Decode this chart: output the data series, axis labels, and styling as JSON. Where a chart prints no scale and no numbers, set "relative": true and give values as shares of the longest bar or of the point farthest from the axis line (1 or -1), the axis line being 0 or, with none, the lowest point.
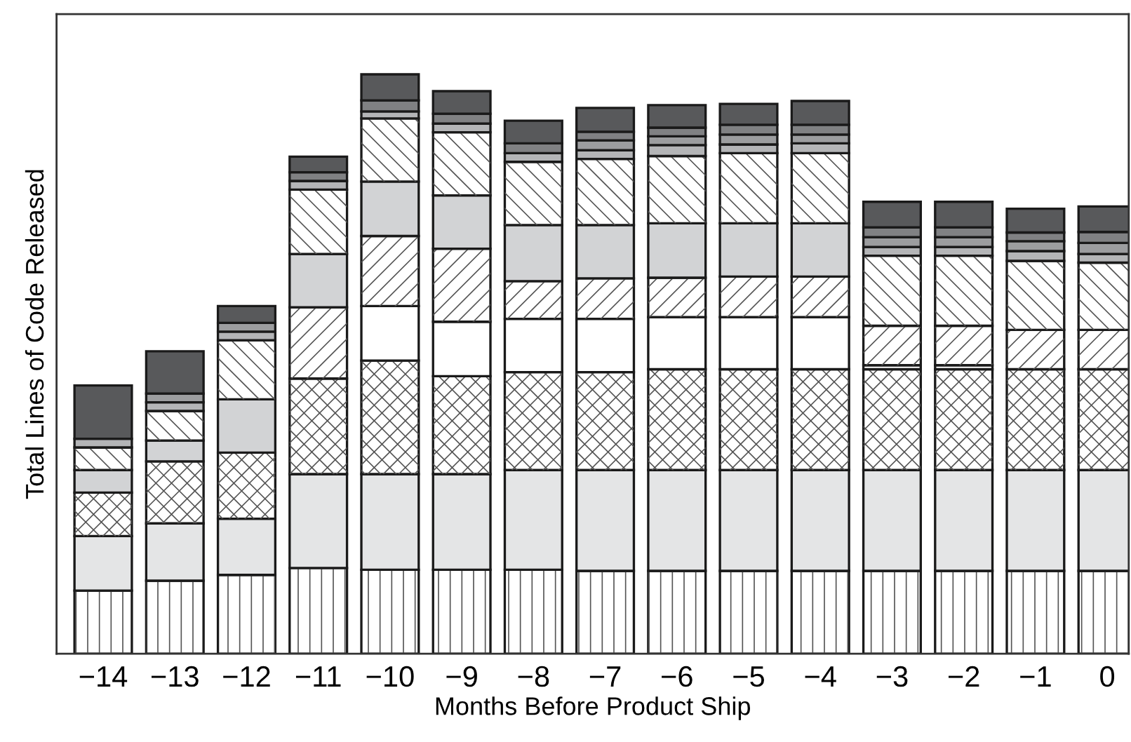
{
  "chart_data": {
    "type": "bar",
    "stacked": true,
    "relative": true,
    "xlabel": "Months Before Product Ship",
    "ylabel": "Total Lines of Code Released",
    "tick_labels": "x",
    "grid": false,
    "legend": false,
    "categories": [
      "−14",
      "−13",
      "−12",
      "−11",
      "−10",
      "−9",
      "−8",
      "−7",
      "−6",
      "−5",
      "−4",
      "−3",
      "−2",
      "−1",
      "0"
    ],
    "series": [
      {
        "color": "#ffffff",
        "values": [
          0.109,
          0.126,
          0.136,
          0.148,
          0.145,
          0.145,
          0.145,
          0.143,
          0.143,
          0.143,
          0.143,
          0.143,
          0.143,
          0.143,
          0.143
        ]
      },
      {
        "color": "#e4e5e6",
        "values": [
          0.094,
          0.099,
          0.097,
          0.162,
          0.165,
          0.165,
          0.172,
          0.174,
          0.174,
          0.174,
          0.174,
          0.174,
          0.174,
          0.174,
          0.174
        ]
      },
      {
        "color": "#ffffff",
        "values": [
          0.075,
          0.107,
          0.114,
          0.165,
          0.196,
          0.169,
          0.169,
          0.169,
          0.174,
          0.174,
          0.174,
          0.174,
          0.174,
          0.174,
          0.174
        ]
      },
      {
        "color": "#ffffff",
        "values": [
          null,
          null,
          null,
          null,
          0.094,
          0.094,
          0.092,
          0.092,
          0.09,
          0.09,
          0.09,
          0.007,
          0.007,
          null,
          null
        ]
      },
      {
        "color": "#ffffff",
        "values": [
          null,
          null,
          null,
          0.123,
          0.121,
          0.126,
          0.065,
          0.07,
          0.068,
          0.07,
          0.07,
          0.068,
          0.068,
          0.068,
          0.068
        ]
      },
      {
        "color": "#d2d3d5",
        "values": [
          0.039,
          0.036,
          0.092,
          0.092,
          0.094,
          0.092,
          0.097,
          0.092,
          0.094,
          0.092,
          0.092,
          null,
          null,
          null,
          null
        ]
      },
      {
        "color": "#ffffff",
        "values": [
          0.039,
          0.051,
          0.102,
          0.111,
          0.109,
          0.109,
          0.109,
          0.114,
          0.116,
          0.121,
          0.121,
          0.121,
          0.121,
          0.119,
          0.116
        ]
      },
      {
        "color": "#b4b5b7",
        "values": [
          0.015,
          0.015,
          0.015,
          0.015,
          0.012,
          0.015,
          0.015,
          0.015,
          0.019,
          0.015,
          0.017,
          0.015,
          0.015,
          0.017,
          0.015
        ]
      },
      {
        "color": "#9c9d9f",
        "values": [
          null,
          0.015,
          0.015,
          null,
          null,
          null,
          null,
          0.017,
          0.015,
          0.017,
          0.015,
          0.017,
          0.017,
          0.017,
          0.019
        ]
      },
      {
        "color": "#808183",
        "values": [
          null,
          null,
          null,
          0.015,
          0.019,
          0.017,
          0.017,
          0.015,
          0.015,
          0.017,
          0.017,
          0.017,
          0.017,
          0.015,
          0.019
        ]
      },
      {
        "color": "#58595b",
        "values": [
          0.092,
          0.073,
          0.029,
          0.027,
          0.045,
          0.039,
          0.039,
          0.041,
          0.039,
          0.036,
          0.041,
          0.044,
          0.044,
          0.041,
          0.044
        ]
      }
    ]
  }
}
